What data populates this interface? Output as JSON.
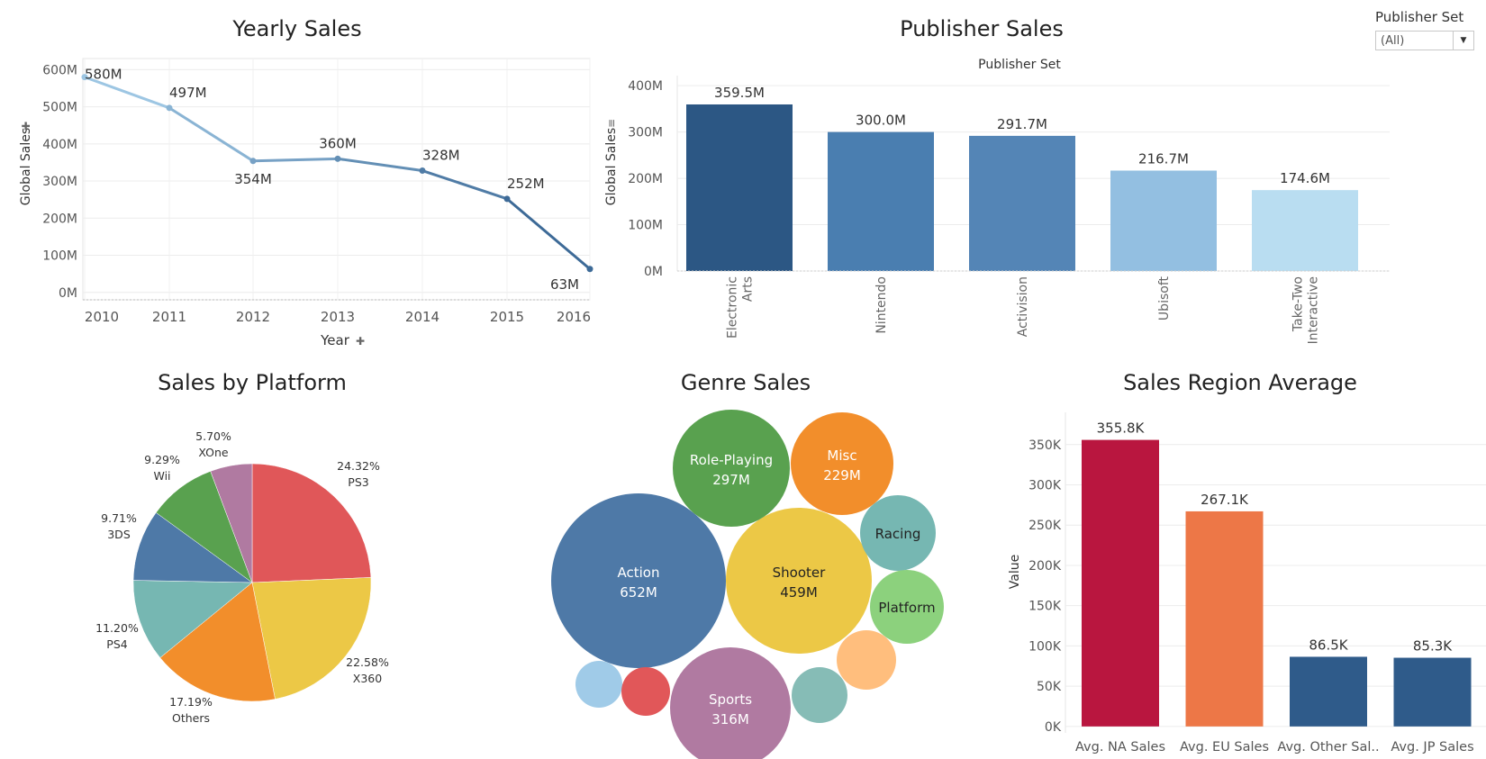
{
  "filter": {
    "label": "Publisher Set",
    "value": "(All)"
  },
  "chart_data": [
    {
      "id": "yearly",
      "type": "line",
      "title": "Yearly Sales",
      "xlabel": "Year",
      "ylabel": "Global Sales",
      "x": [
        "2010",
        "2011",
        "2012",
        "2013",
        "2014",
        "2015",
        "2016"
      ],
      "values": [
        580,
        497,
        354,
        360,
        328,
        252,
        63
      ],
      "labels": [
        "580M",
        "497M",
        "354M",
        "360M",
        "328M",
        "252M",
        "63M"
      ],
      "yticks": [
        0,
        100,
        200,
        300,
        400,
        500,
        600
      ],
      "ytick_labels": [
        "0M",
        "100M",
        "200M",
        "300M",
        "400M",
        "500M",
        "600M"
      ],
      "ylim": [
        -20,
        630
      ],
      "color_light": "#9dc6e3",
      "color_dark": "#3d6a97",
      "grid": true
    },
    {
      "id": "publisher",
      "type": "bar",
      "title": "Publisher Sales",
      "header": "Publisher Set",
      "ylabel": "Global Sales",
      "categories": [
        [
          "Electronic",
          "Arts"
        ],
        [
          "Nintendo"
        ],
        [
          "Activision"
        ],
        [
          "Ubisoft"
        ],
        [
          "Take-Two",
          "Interactive"
        ]
      ],
      "values": [
        359.5,
        300.0,
        291.7,
        216.7,
        174.6
      ],
      "labels": [
        "359.5M",
        "300.0M",
        "291.7M",
        "216.7M",
        "174.6M"
      ],
      "colors": [
        "#2c5784",
        "#4a7eb0",
        "#5485b6",
        "#93bfe1",
        "#b9ddf1"
      ],
      "yticks": [
        0,
        100,
        200,
        300,
        400
      ],
      "ytick_labels": [
        "0M",
        "100M",
        "200M",
        "300M",
        "400M"
      ],
      "ylim": [
        0,
        410
      ],
      "grid": true
    },
    {
      "id": "platform",
      "type": "pie",
      "title": "Sales by Platform",
      "slices": [
        {
          "name": "PS3",
          "pct": "24.32%",
          "value": 24.32,
          "color": "#e05759"
        },
        {
          "name": "X360",
          "pct": "22.58%",
          "value": 22.58,
          "color": "#ecc846"
        },
        {
          "name": "Others",
          "pct": "17.19%",
          "value": 17.19,
          "color": "#f28e2b"
        },
        {
          "name": "PS4",
          "pct": "11.20%",
          "value": 11.2,
          "color": "#76b7b2"
        },
        {
          "name": "3DS",
          "pct": "9.71%",
          "value": 9.71,
          "color": "#4e79a7"
        },
        {
          "name": "Wii",
          "pct": "9.29%",
          "value": 9.29,
          "color": "#59a14f"
        },
        {
          "name": "XOne",
          "pct": "5.70%",
          "value": 5.7,
          "color": "#b07aa1"
        }
      ]
    },
    {
      "id": "genre",
      "type": "bubble",
      "title": "Genre Sales",
      "bubbles": [
        {
          "name": "Action",
          "label": "652M",
          "value": 652,
          "color": "#4e79a7"
        },
        {
          "name": "Shooter",
          "label": "459M",
          "value": 459,
          "color": "#ecc846"
        },
        {
          "name": "Sports",
          "label": "316M",
          "value": 316,
          "color": "#b07aa1"
        },
        {
          "name": "Role-Playing",
          "label": "297M",
          "value": 297,
          "color": "#59a14f"
        },
        {
          "name": "Misc",
          "label": "229M",
          "value": 229,
          "color": "#f28e2b"
        },
        {
          "name": "Racing",
          "label": "",
          "value": 130,
          "color": "#76b7b2"
        },
        {
          "name": "Platform",
          "label": "",
          "value": 124,
          "color": "#8cd17d"
        },
        {
          "name": "",
          "label": "",
          "value": 85,
          "color": "#ffbe7d"
        },
        {
          "name": "",
          "label": "",
          "value": 70,
          "color": "#86bcb6"
        },
        {
          "name": "",
          "label": "",
          "value": 55,
          "color": "#a0cbe8"
        },
        {
          "name": "",
          "label": "",
          "value": 55,
          "color": "#e15759"
        }
      ]
    },
    {
      "id": "region",
      "type": "bar",
      "title": "Sales Region Average",
      "ylabel": "Value",
      "categories": [
        "Avg. NA Sales",
        "Avg. EU Sales",
        "Avg. Other Sal..",
        "Avg. JP Sales"
      ],
      "values": [
        355.8,
        267.1,
        86.5,
        85.3
      ],
      "labels": [
        "355.8K",
        "267.1K",
        "86.5K",
        "85.3K"
      ],
      "colors": [
        "#b9163f",
        "#ed7747",
        "#2f5b8a",
        "#2f5b8a"
      ],
      "yticks": [
        0,
        50,
        100,
        150,
        200,
        250,
        300,
        350
      ],
      "ytick_labels": [
        "0K",
        "50K",
        "100K",
        "150K",
        "200K",
        "250K",
        "300K",
        "350K"
      ],
      "ylim": [
        -8,
        390
      ],
      "grid": true
    }
  ]
}
